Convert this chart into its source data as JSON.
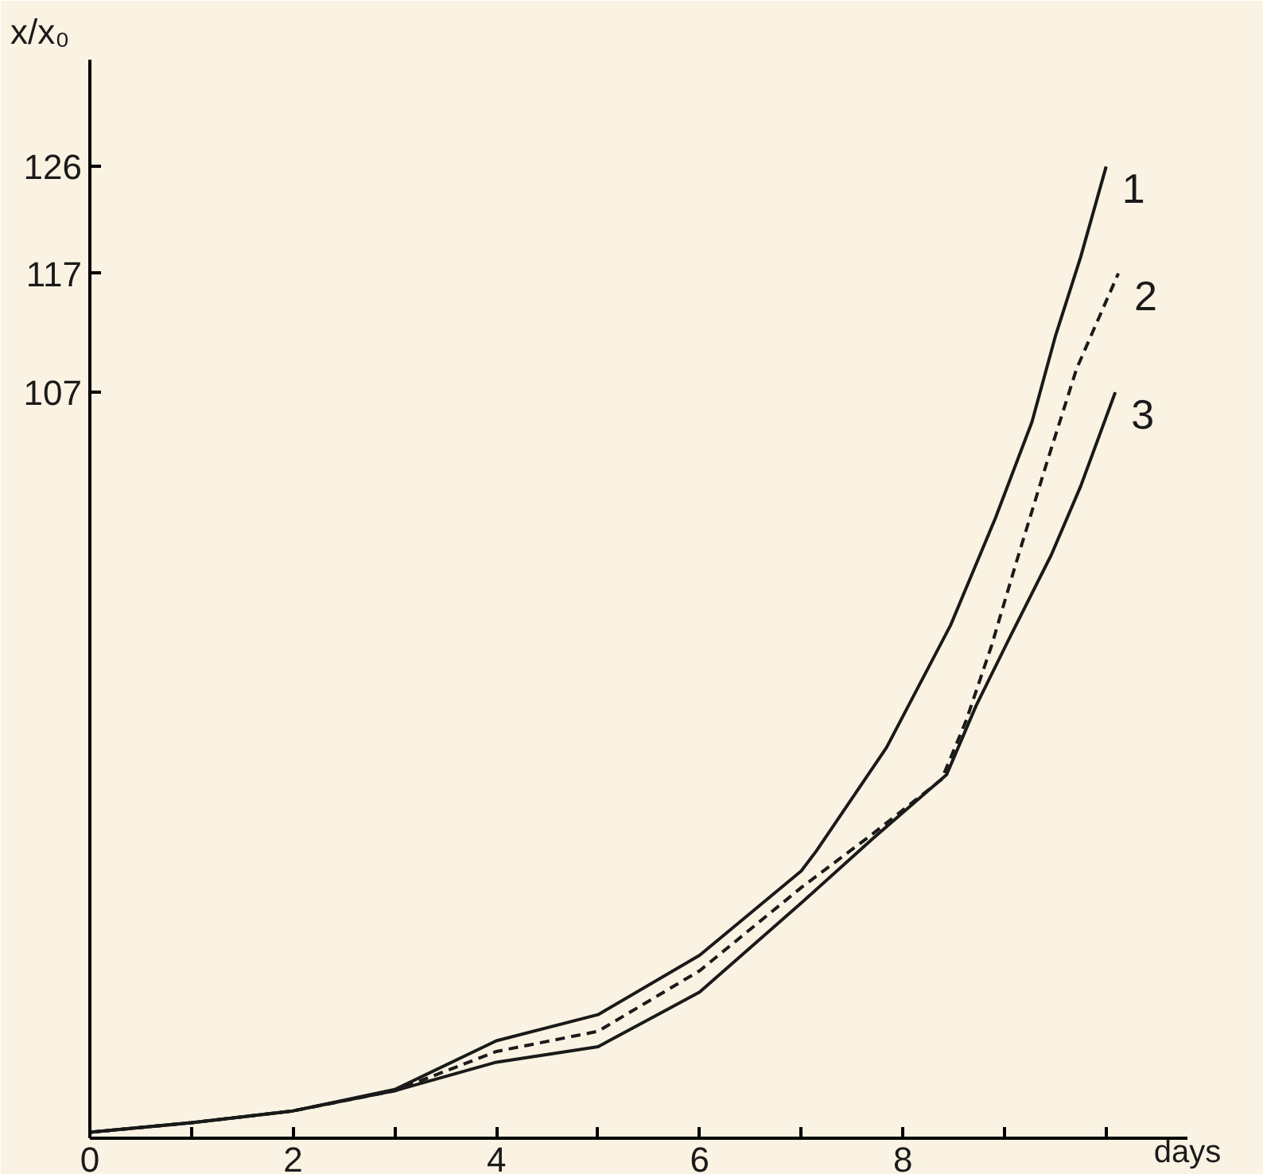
{
  "chart_data": {
    "type": "line",
    "xlabel": "days",
    "ylabel": "x/x₀",
    "xlim": [
      0,
      10.8
    ],
    "ylim": [
      44.2,
      135
    ],
    "xticks": [
      0,
      {
        "value": 1,
        "label": null
      },
      2,
      {
        "value": 3,
        "label": null
      },
      4,
      {
        "value": 5,
        "label": null
      },
      6,
      {
        "value": 7,
        "label": null
      },
      8,
      {
        "value": 9,
        "label": null
      },
      {
        "value": 10,
        "label": null
      }
    ],
    "yticks": [
      107,
      117,
      126
    ],
    "grid": false,
    "marker": "none",
    "series": [
      {
        "name": "1",
        "color": "#1a1a1a",
        "line_style": "solid",
        "x": [
          0,
          1,
          2,
          3,
          4,
          5,
          6,
          7,
          7.15,
          7.84,
          8.47,
          8.91,
          9.27,
          9.5,
          9.75,
          10.0
        ],
        "values": [
          44.7,
          45.5,
          46.5,
          48.3,
          52.4,
          54.6,
          59.6,
          66.7,
          68.4,
          77.1,
          87.4,
          96.4,
          104.5,
          111.7,
          118.4,
          126
        ]
      },
      {
        "name": "2",
        "color": "#1a1a1a",
        "line_style": "dashed",
        "x": [
          0,
          1,
          2,
          3,
          4,
          5,
          6,
          7,
          7.7,
          8.38,
          8.62,
          8.87,
          9.12,
          9.41,
          9.71,
          10.12
        ],
        "values": [
          44.7,
          45.5,
          46.5,
          48.2,
          51.5,
          53.2,
          58.3,
          65.3,
          69.8,
          74.4,
          79.3,
          85.6,
          92.8,
          100.9,
          109.0,
          117
        ]
      },
      {
        "name": "3",
        "color": "#1a1a1a",
        "line_style": "solid",
        "x": [
          0,
          1,
          2,
          3,
          4,
          5,
          6,
          7,
          7.7,
          8.43,
          8.72,
          9.06,
          9.46,
          9.75,
          10.09
        ],
        "values": [
          44.7,
          45.5,
          46.5,
          48.2,
          50.6,
          51.9,
          56.5,
          64.0,
          69.4,
          74.8,
          80.6,
          86.5,
          93.3,
          99.1,
          107
        ]
      }
    ]
  }
}
